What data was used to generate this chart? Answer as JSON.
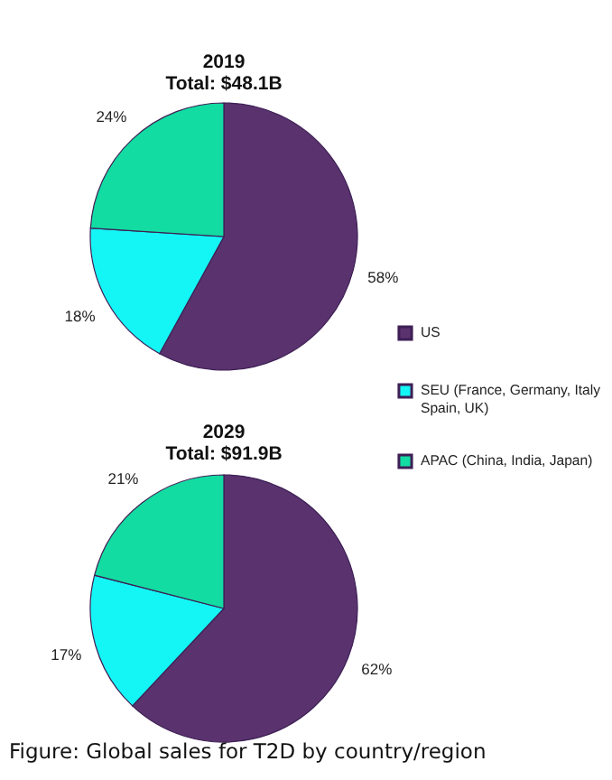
{
  "chart_data": [
    {
      "type": "pie",
      "title": "2019",
      "subtitle": "Total: $48.1B",
      "categories": [
        "US",
        "SEU (France, Germany, Italy Spain, UK)",
        "APAC (China, India, Japan)"
      ],
      "values": [
        58,
        18,
        24
      ],
      "colors": [
        "#5a336e",
        "#14f5f5",
        "#12dca2"
      ],
      "value_labels": [
        "58%",
        "18%",
        "24%"
      ],
      "legend": "right"
    },
    {
      "type": "pie",
      "title": "2029",
      "subtitle": "Total: $91.9B",
      "categories": [
        null,
        null,
        null
      ],
      "values": [
        62,
        17,
        21
      ],
      "colors": [
        "#5a336e",
        "#14f5f5",
        "#12dca2"
      ],
      "value_labels": [
        "62%",
        "17%",
        "21%"
      ],
      "annotations": [
        "Figure: Global sales for T2D by country/region"
      ]
    }
  ]
}
